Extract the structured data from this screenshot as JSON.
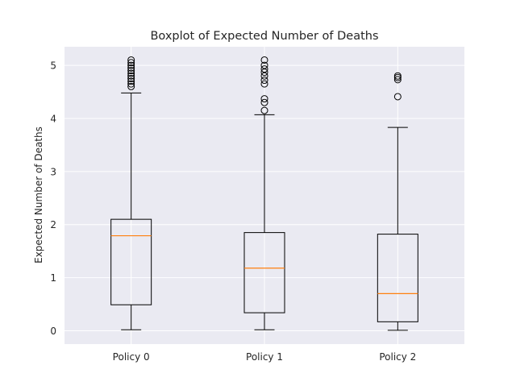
{
  "chart_data": {
    "type": "boxplot",
    "title": "Boxplot of Expected Number of Deaths",
    "xlabel": "",
    "ylabel": "Expected Number of Deaths",
    "categories": [
      "Policy 0",
      "Policy 1",
      "Policy 2"
    ],
    "ylim": [
      -0.25,
      5.35
    ],
    "yticks": [
      0,
      1,
      2,
      3,
      4,
      5
    ],
    "grid": true,
    "legend": "none",
    "background_color": "#eaeaf2",
    "grid_color": "#ffffff",
    "box_color": "#000000",
    "median_color": "#ff7f0e",
    "boxes": [
      {
        "name": "Policy 0",
        "whisker_low": 0.02,
        "q1": 0.49,
        "median": 1.79,
        "q3": 2.1,
        "whisker_high": 4.48,
        "outliers": [
          4.6,
          4.65,
          4.7,
          4.75,
          4.8,
          4.85,
          4.9,
          4.95,
          5.0,
          5.05,
          5.1
        ]
      },
      {
        "name": "Policy 1",
        "whisker_low": 0.02,
        "q1": 0.34,
        "median": 1.18,
        "q3": 1.85,
        "whisker_high": 4.07,
        "outliers": [
          4.15,
          4.3,
          4.37,
          4.65,
          4.72,
          4.8,
          4.87,
          4.93,
          5.0,
          5.1
        ]
      },
      {
        "name": "Policy 2",
        "whisker_low": 0.01,
        "q1": 0.17,
        "median": 0.7,
        "q3": 1.82,
        "whisker_high": 3.83,
        "outliers": [
          4.41,
          4.73,
          4.77,
          4.8
        ]
      }
    ]
  }
}
